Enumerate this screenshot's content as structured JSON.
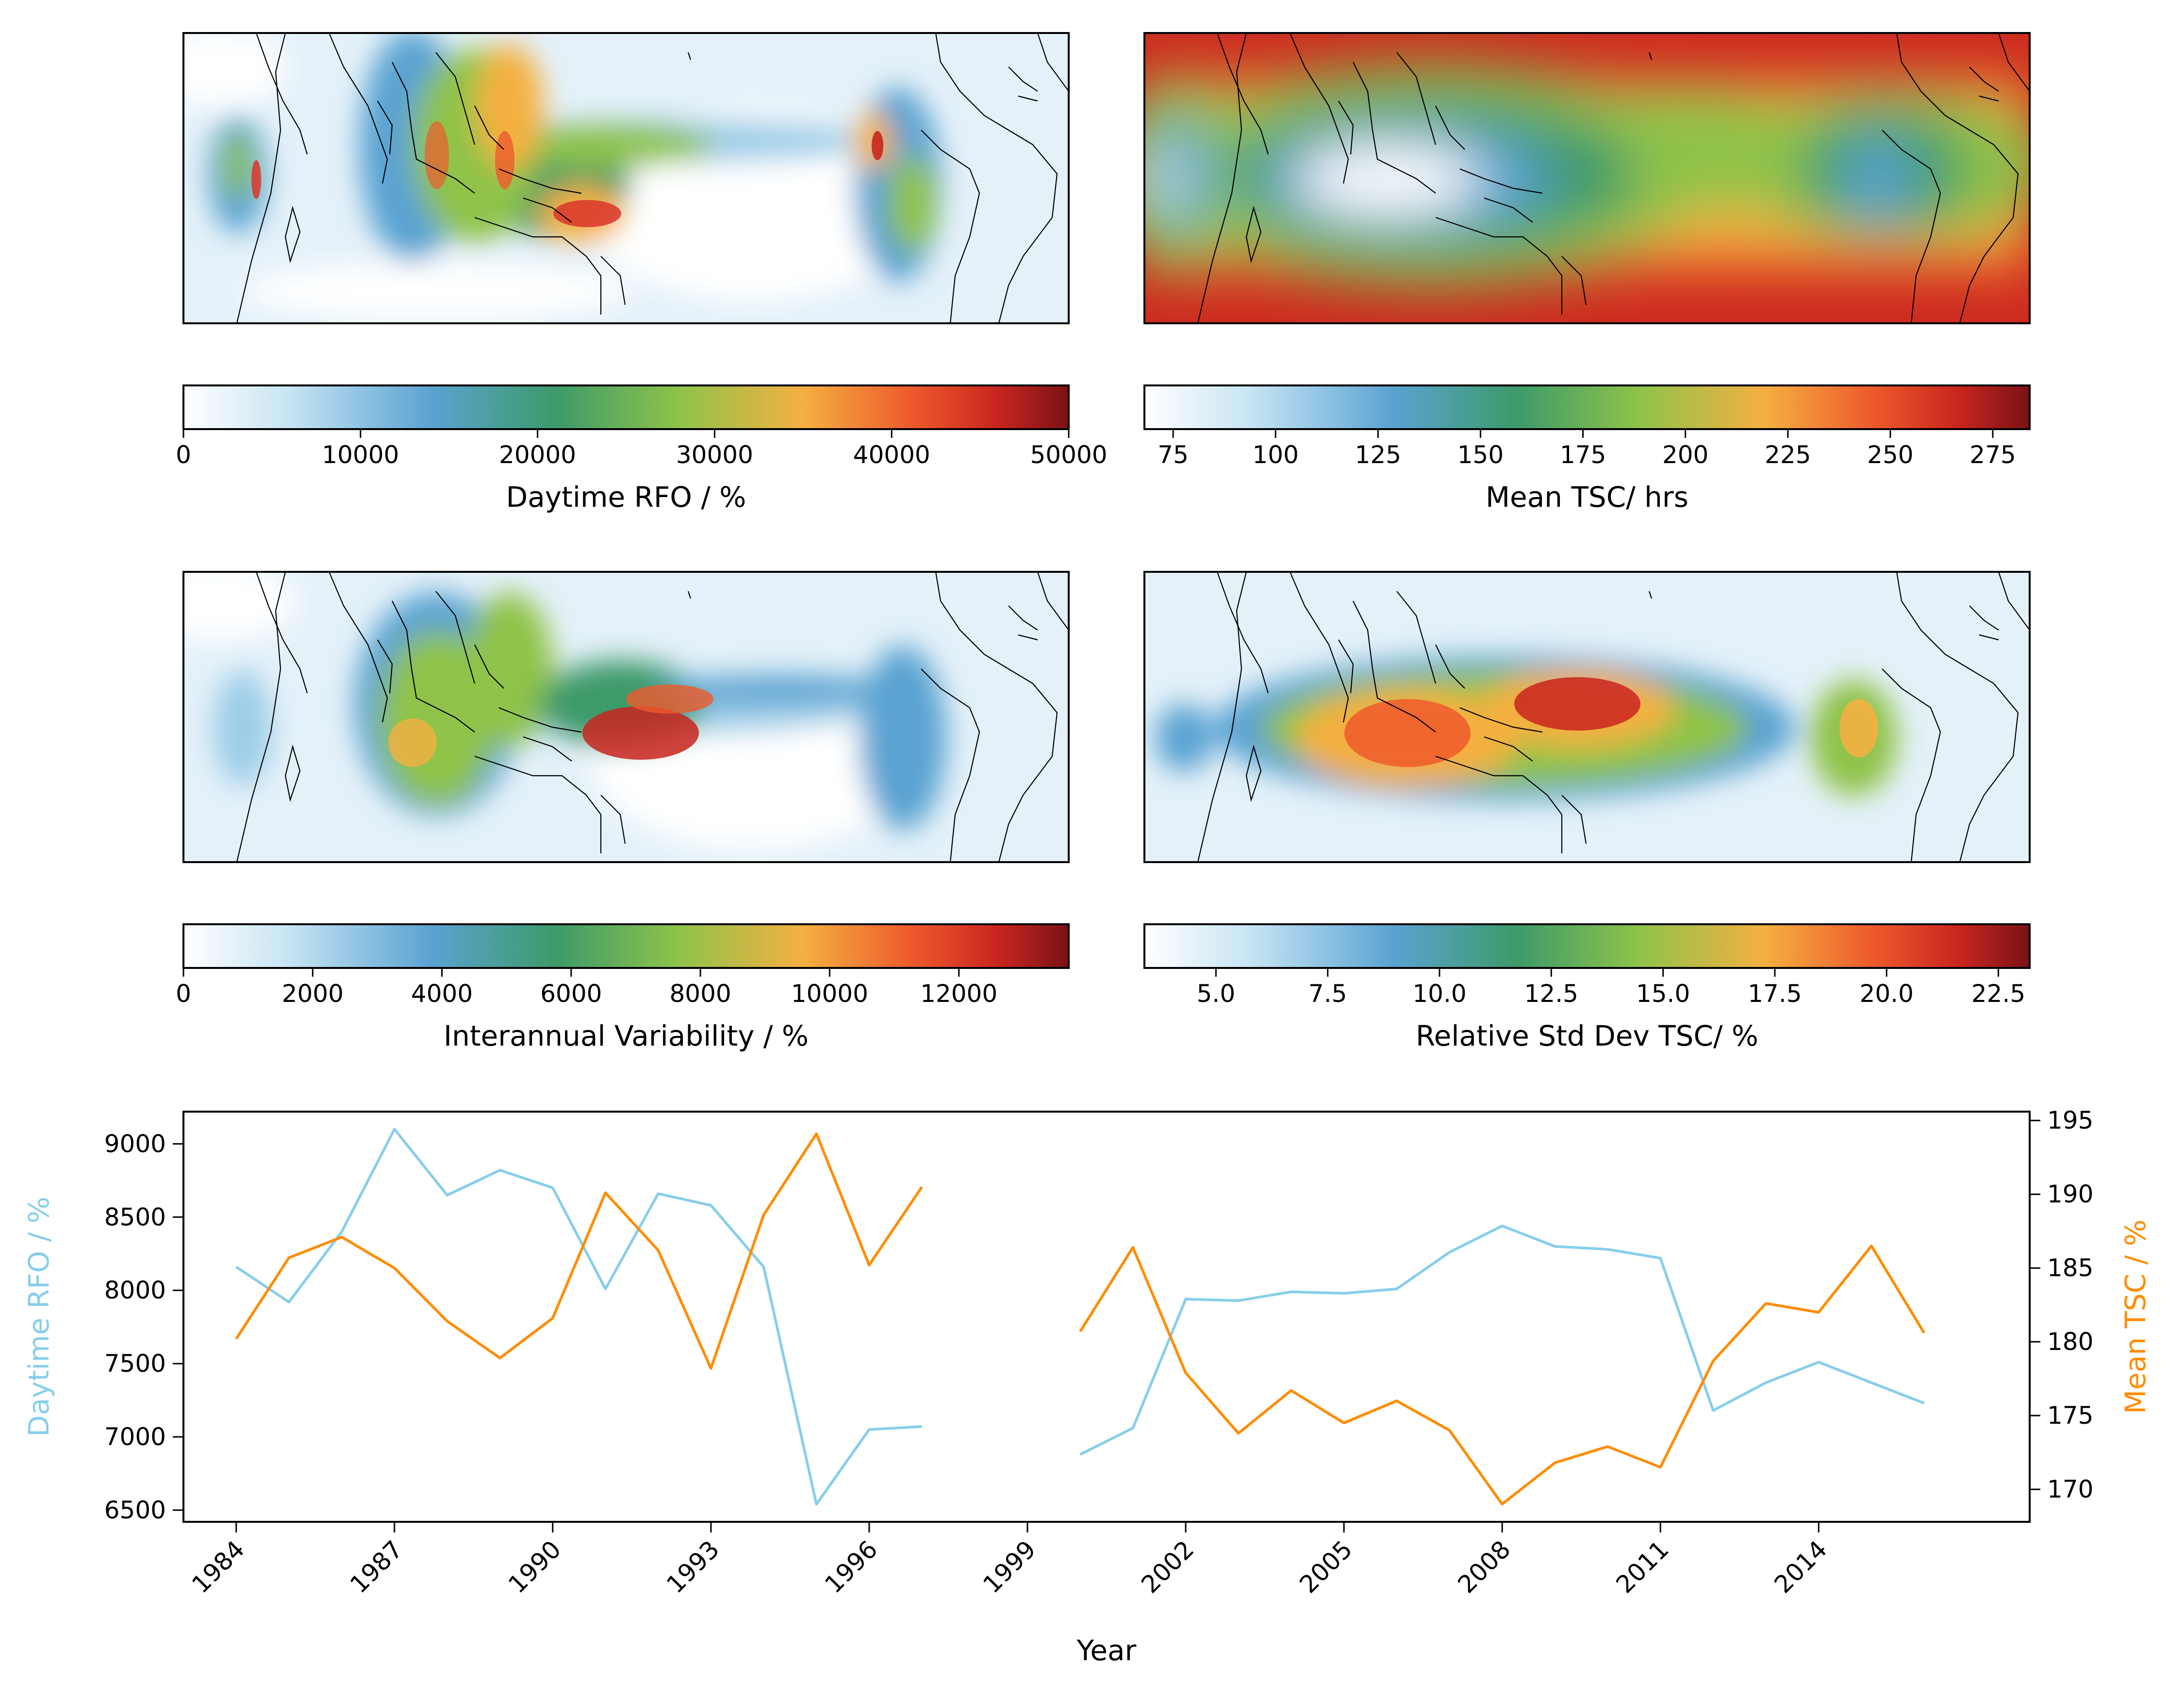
{
  "colors": {
    "rfo_line": "#87ceeb",
    "tsc_line": "#ff8c00",
    "cmap": [
      "#ffffff",
      "#c6e4f4",
      "#5aa3d2",
      "#3d9a6a",
      "#8fc34a",
      "#f4b041",
      "#ee5b2c",
      "#c9251f",
      "#7a1216"
    ]
  },
  "chart_data": [
    {
      "type": "heatmap",
      "panel": "map-rfo",
      "colorbar": {
        "label": "Daytime RFO / %",
        "range": [
          0,
          50000
        ],
        "ticks": [
          "0",
          "10000",
          "20000",
          "30000",
          "40000",
          "50000"
        ]
      }
    },
    {
      "type": "heatmap",
      "panel": "map-tsc",
      "colorbar": {
        "label": "Mean TSC/ hrs",
        "range": [
          68,
          284
        ],
        "ticks": [
          "75",
          "100",
          "125",
          "150",
          "175",
          "200",
          "225",
          "250",
          "275"
        ]
      }
    },
    {
      "type": "heatmap",
      "panel": "map-iav",
      "colorbar": {
        "label": "Interannual Variability / %",
        "range": [
          0,
          13700
        ],
        "ticks": [
          "0",
          "2000",
          "4000",
          "6000",
          "8000",
          "10000",
          "12000"
        ]
      }
    },
    {
      "type": "heatmap",
      "panel": "map-rsd",
      "colorbar": {
        "label": "Relative Std Dev TSC/ %",
        "range": [
          3.4,
          23.2
        ],
        "ticks": [
          "5.0",
          "7.5",
          "10.0",
          "12.5",
          "15.0",
          "17.5",
          "20.0",
          "22.5"
        ]
      }
    },
    {
      "type": "line",
      "xlabel": "Year",
      "ylabel_left": "Daytime RFO / %",
      "ylabel_right": "Mean TSC / %",
      "xlim": [
        1983,
        2018
      ],
      "ylim_left": [
        6420,
        9220
      ],
      "ylim_right": [
        167.8,
        195.6
      ],
      "xticks": [
        "1984",
        "1987",
        "1990",
        "1993",
        "1996",
        "1999",
        "2002",
        "2005",
        "2008",
        "2011",
        "2014"
      ],
      "yticks_left": [
        "6500",
        "7000",
        "7500",
        "8000",
        "8500",
        "9000"
      ],
      "yticks_right": [
        "170",
        "175",
        "180",
        "185",
        "190",
        "195"
      ],
      "x": [
        1984,
        1985,
        1986,
        1987,
        1988,
        1989,
        1990,
        1991,
        1992,
        1993,
        1994,
        1995,
        1996,
        1997,
        1998,
        1999,
        2000,
        2001,
        2002,
        2003,
        2004,
        2005,
        2006,
        2007,
        2008,
        2009,
        2010,
        2011,
        2012,
        2013,
        2014,
        2015,
        2016
      ],
      "series": [
        {
          "name": "Daytime RFO / %",
          "axis": "left",
          "values": [
            8160,
            7920,
            8400,
            9100,
            8650,
            8820,
            8700,
            8010,
            8660,
            8580,
            8160,
            6540,
            7050,
            7070,
            null,
            null,
            6880,
            7060,
            7940,
            7930,
            7990,
            7980,
            8010,
            8260,
            8440,
            8300,
            8280,
            8220,
            7180,
            7370,
            7510,
            7370,
            7230
          ]
        },
        {
          "name": "Mean TSC / %",
          "axis": "right",
          "values": [
            180.2,
            185.7,
            187.1,
            185.0,
            181.4,
            178.9,
            181.6,
            190.1,
            186.2,
            178.2,
            188.6,
            194.1,
            185.2,
            190.5,
            null,
            null,
            180.7,
            186.4,
            177.9,
            173.8,
            176.7,
            174.5,
            176.0,
            174.0,
            169.0,
            171.8,
            172.9,
            171.5,
            178.7,
            182.6,
            182.0,
            186.5,
            180.6
          ]
        }
      ]
    }
  ]
}
